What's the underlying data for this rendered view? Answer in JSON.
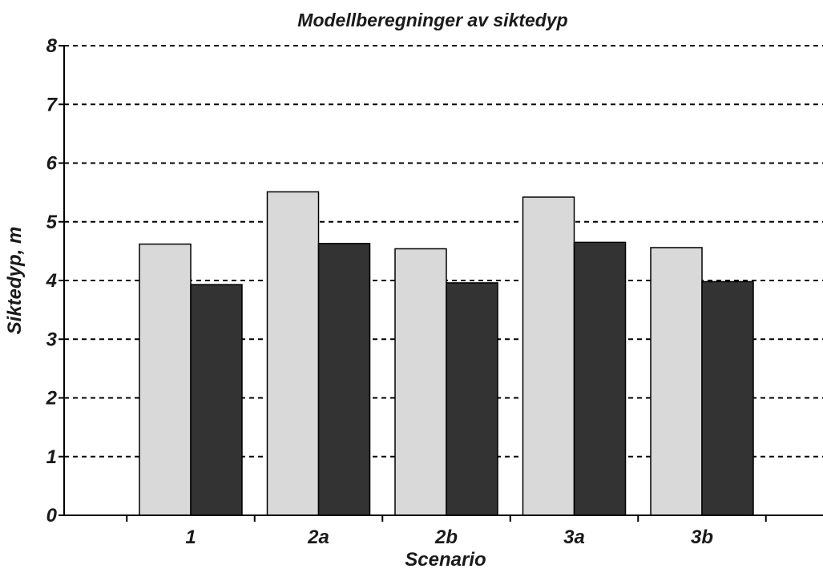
{
  "chart_data": {
    "type": "bar",
    "title": "Modellberegninger av siktedyp",
    "xlabel": "Scenario",
    "ylabel": "Siktedyp, m",
    "categories": [
      "1",
      "2a",
      "2b",
      "3a",
      "3b"
    ],
    "series": [
      {
        "color": "#d9d9d9",
        "values": [
          4.62,
          5.51,
          4.54,
          5.42,
          4.56
        ]
      },
      {
        "color": "#333333",
        "values": [
          3.93,
          4.63,
          3.96,
          4.65,
          3.98
        ]
      }
    ],
    "ylim": [
      0,
      8
    ],
    "yticks": [
      "0",
      "1",
      "2",
      "3",
      "4",
      "5",
      "6",
      "7",
      "8"
    ],
    "grid": "dashed-horizontal",
    "legend": "none"
  }
}
